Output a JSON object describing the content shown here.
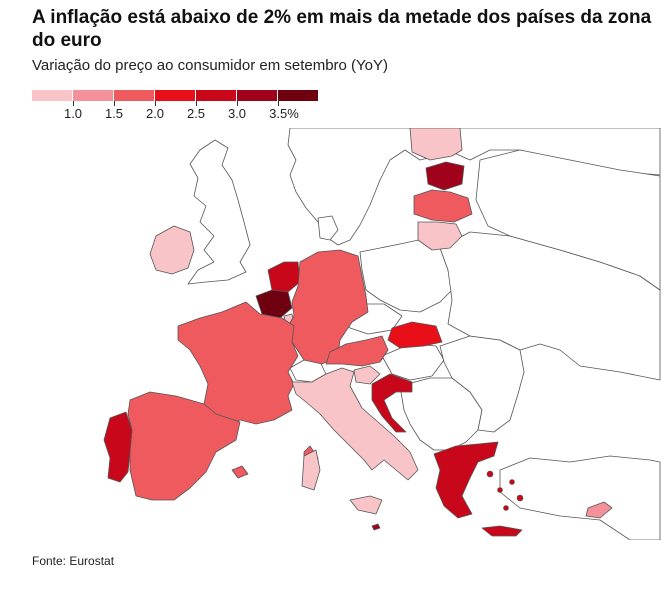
{
  "title": "A inflação está abaixo de 2% em mais da metade dos países da zona do euro",
  "subtitle": "Variação do preço ao consumidor em setembro (YoY)",
  "source": "Fonte: Eurostat",
  "legend": {
    "colors": [
      "#f9c4c8",
      "#f5919a",
      "#ef5a5f",
      "#e80f18",
      "#c9071a",
      "#a0021b",
      "#6e0010"
    ],
    "labels": [
      "1.0",
      "1.5",
      "2.0",
      "2.5",
      "3.0",
      "3.5%"
    ]
  },
  "colors": {
    "non_eurozone_fill": "#ffffff",
    "border": "#555555",
    "coast": "#888888"
  }
}
